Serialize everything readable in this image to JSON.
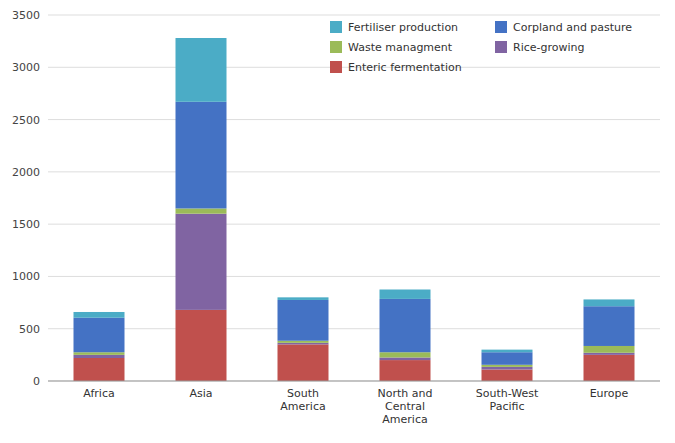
{
  "chart_data": {
    "type": "bar",
    "stacked": true,
    "categories": [
      "Africa",
      "Asia",
      "South\nAmerica",
      "North and\nCentral\nAmerica",
      "South-West\nPacific",
      "Europe"
    ],
    "series": [
      {
        "name": "Enteric fermentation",
        "color": "#c0504d",
        "values": [
          220,
          680,
          350,
          200,
          110,
          250
        ]
      },
      {
        "name": "Rice-growing",
        "color": "#8064a2",
        "values": [
          30,
          920,
          15,
          25,
          25,
          20
        ]
      },
      {
        "name": "Waste managment",
        "color": "#9bbb59",
        "values": [
          25,
          50,
          20,
          50,
          20,
          65
        ]
      },
      {
        "name": "Corpland and pasture",
        "color": "#4472c4",
        "values": [
          330,
          1020,
          390,
          510,
          120,
          380
        ]
      },
      {
        "name": "Fertiliser production",
        "color": "#4bacc6",
        "values": [
          55,
          610,
          25,
          90,
          25,
          65
        ]
      }
    ],
    "ylim": [
      0,
      3500
    ],
    "yticks": [
      0,
      500,
      1000,
      1500,
      2000,
      2500,
      3000,
      3500
    ],
    "grid": true,
    "legend": "upper right"
  }
}
